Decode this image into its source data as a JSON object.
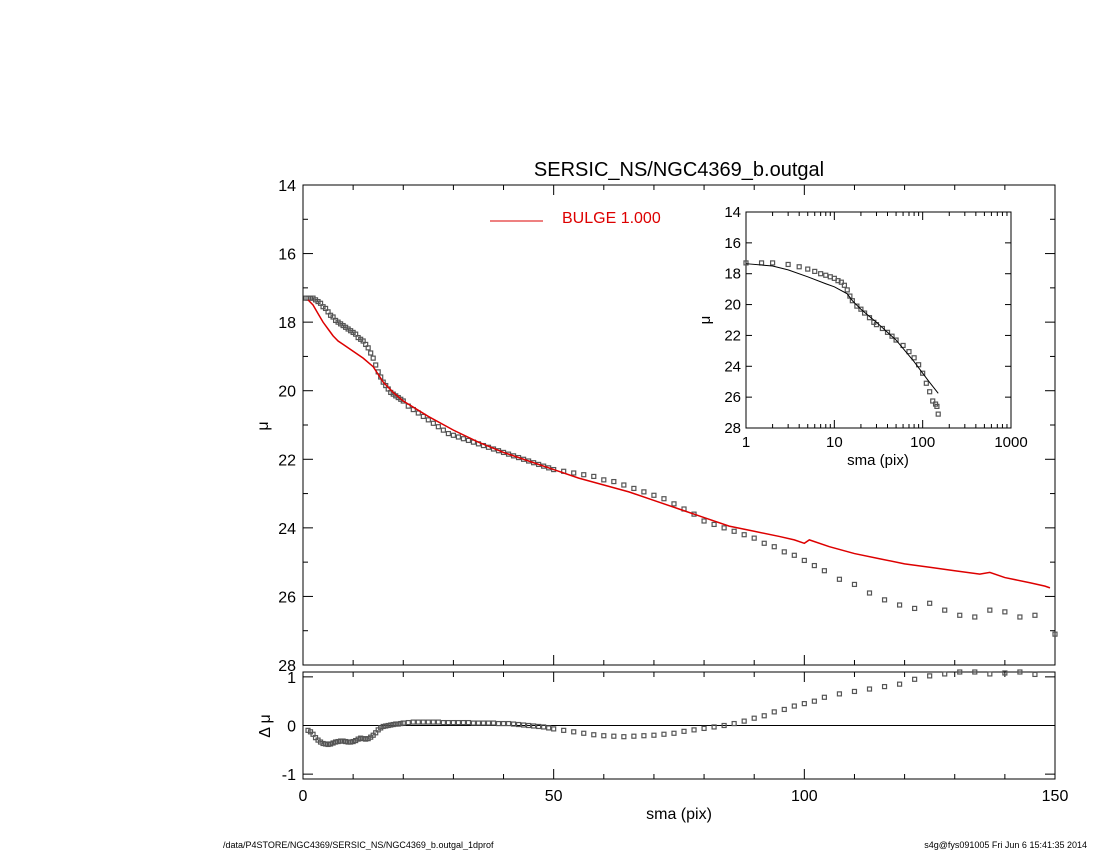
{
  "footer": {
    "path": "/data/P4STORE/NGC4369/SERSIC_NS/NGC4369_b.outgal_1dprof",
    "stamp": "s4g@fys091005  Fri Jun  6 15:41:35 2014"
  },
  "colors": {
    "model": "#dd0000",
    "data": "#555555",
    "axes": "#000000"
  },
  "chart_data": [
    {
      "id": "main",
      "type": "scatter",
      "title": "SERSIC_NS/NGC4369_b.outgal",
      "ylabel": "μ",
      "xlabel": "",
      "xlim": [
        0,
        150
      ],
      "ylim": [
        28,
        14
      ],
      "y_inverted": true,
      "yticks": [
        14,
        16,
        18,
        20,
        22,
        24,
        26,
        28
      ],
      "legend": {
        "text": "BULGE  1.000",
        "placement": "top-center"
      },
      "series": [
        {
          "name": "BULGE  1.000",
          "kind": "line",
          "x": [
            1,
            2,
            3,
            4,
            5,
            6,
            7,
            8,
            10,
            12,
            14,
            16,
            18,
            20,
            25,
            30,
            35,
            40,
            45,
            50,
            55,
            60,
            65,
            70,
            75,
            80,
            85,
            90,
            95,
            98,
            100,
            101,
            105,
            110,
            115,
            120,
            125,
            130,
            135,
            137,
            140,
            145,
            148,
            149
          ],
          "y": [
            17.35,
            17.5,
            17.75,
            18.0,
            18.2,
            18.4,
            18.55,
            18.65,
            18.85,
            19.05,
            19.3,
            19.75,
            20.05,
            20.3,
            20.75,
            21.15,
            21.5,
            21.8,
            22.05,
            22.3,
            22.55,
            22.75,
            22.95,
            23.2,
            23.45,
            23.7,
            23.95,
            24.1,
            24.25,
            24.35,
            24.45,
            24.35,
            24.55,
            24.75,
            24.9,
            25.05,
            25.15,
            25.25,
            25.35,
            25.3,
            25.45,
            25.6,
            25.7,
            25.75
          ]
        },
        {
          "kind": "markers",
          "x": [
            0.6,
            1.0,
            1.5,
            2.0,
            2.5,
            3.0,
            3.5,
            4.0,
            4.5,
            5.0,
            5.5,
            6.0,
            6.5,
            7.0,
            7.5,
            8.0,
            8.5,
            9.0,
            9.5,
            10.0,
            10.5,
            11.0,
            11.5,
            12.0,
            12.5,
            13.0,
            13.5,
            14.0,
            14.5,
            15.0,
            15.5,
            16.0,
            16.5,
            17.0,
            17.5,
            18.0,
            18.5,
            19.0,
            19.5,
            20.0,
            21,
            22,
            23,
            24,
            25,
            26,
            27,
            28,
            29,
            30,
            31,
            32,
            33,
            34,
            35,
            36,
            37,
            38,
            39,
            40,
            41,
            42,
            43,
            44,
            45,
            46,
            47,
            48,
            49,
            50,
            52,
            54,
            56,
            58,
            60,
            62,
            64,
            66,
            68,
            70,
            72,
            74,
            76,
            78,
            80,
            82,
            84,
            86,
            88,
            90,
            92,
            94,
            96,
            98,
            100,
            102,
            104,
            107,
            110,
            113,
            116,
            119,
            122,
            125,
            128,
            131,
            134,
            137,
            140,
            143,
            146,
            150
          ],
          "y": [
            17.3,
            17.3,
            17.3,
            17.3,
            17.35,
            17.4,
            17.45,
            17.55,
            17.6,
            17.7,
            17.8,
            17.85,
            17.95,
            18.0,
            18.05,
            18.1,
            18.15,
            18.2,
            18.25,
            18.3,
            18.35,
            18.45,
            18.5,
            18.55,
            18.65,
            18.75,
            18.9,
            19.05,
            19.25,
            19.45,
            19.6,
            19.75,
            19.85,
            19.95,
            20.05,
            20.1,
            20.15,
            20.2,
            20.25,
            20.3,
            20.45,
            20.55,
            20.65,
            20.75,
            20.85,
            20.95,
            21.05,
            21.15,
            21.25,
            21.3,
            21.35,
            21.4,
            21.45,
            21.5,
            21.55,
            21.6,
            21.65,
            21.7,
            21.75,
            21.8,
            21.85,
            21.9,
            21.95,
            22.0,
            22.05,
            22.1,
            22.15,
            22.2,
            22.25,
            22.3,
            22.35,
            22.4,
            22.45,
            22.5,
            22.6,
            22.65,
            22.75,
            22.85,
            22.95,
            23.05,
            23.15,
            23.3,
            23.45,
            23.6,
            23.8,
            23.9,
            24.0,
            24.1,
            24.2,
            24.3,
            24.45,
            24.55,
            24.7,
            24.8,
            24.95,
            25.1,
            25.25,
            25.5,
            25.65,
            25.9,
            26.1,
            26.25,
            26.35,
            26.2,
            26.4,
            26.55,
            26.6,
            26.4,
            26.45,
            26.6,
            26.55,
            27.1
          ]
        }
      ]
    },
    {
      "id": "inset",
      "type": "scatter",
      "xlabel": "sma (pix)",
      "ylabel": "μ",
      "xscale": "log",
      "xlim": [
        1,
        1000
      ],
      "ylim": [
        28,
        14
      ],
      "y_inverted": true,
      "xticks": [
        1,
        10,
        100,
        1000
      ],
      "yticks": [
        14,
        16,
        18,
        20,
        22,
        24,
        26,
        28
      ],
      "series": [
        {
          "kind": "line",
          "x": [
            1,
            2,
            3,
            5,
            8,
            10,
            14,
            16,
            20,
            30,
            50,
            80,
            100,
            120,
            150
          ],
          "y": [
            17.35,
            17.5,
            17.75,
            18.2,
            18.65,
            18.85,
            19.3,
            19.75,
            20.3,
            21.15,
            22.3,
            23.7,
            24.45,
            25.05,
            25.75
          ]
        },
        {
          "kind": "markers",
          "x": [
            1,
            1.5,
            2,
            3,
            4,
            5,
            6,
            7,
            8,
            9,
            10,
            11,
            12,
            13,
            14,
            15,
            16,
            18,
            20,
            22,
            25,
            28,
            30,
            35,
            40,
            45,
            50,
            60,
            70,
            80,
            90,
            100,
            110,
            120,
            130,
            140,
            145,
            150
          ],
          "y": [
            17.3,
            17.3,
            17.3,
            17.4,
            17.55,
            17.7,
            17.85,
            18.0,
            18.1,
            18.2,
            18.3,
            18.45,
            18.55,
            18.75,
            19.05,
            19.45,
            19.75,
            20.1,
            20.3,
            20.55,
            20.85,
            21.15,
            21.3,
            21.55,
            21.8,
            22.05,
            22.3,
            22.65,
            23.05,
            23.45,
            23.9,
            24.45,
            25.1,
            25.65,
            26.25,
            26.45,
            26.6,
            27.1
          ]
        }
      ]
    },
    {
      "id": "residual",
      "type": "scatter",
      "ylabel": "Δ μ",
      "xlabel": "sma (pix)",
      "xlim": [
        0,
        150
      ],
      "ylim": [
        -1.1,
        1.1
      ],
      "xticks": [
        0,
        50,
        100,
        150
      ],
      "yticks": [
        -1,
        0,
        1
      ],
      "zero_line": true,
      "series": [
        {
          "kind": "markers",
          "x": [
            1,
            1.5,
            2,
            2.5,
            3,
            3.5,
            4,
            4.5,
            5,
            5.5,
            6,
            6.5,
            7,
            7.5,
            8,
            8.5,
            9,
            9.5,
            10,
            10.5,
            11,
            11.5,
            12,
            12.5,
            13,
            13.5,
            14,
            14.5,
            15,
            15.5,
            16,
            16.5,
            17,
            17.5,
            18,
            18.5,
            19,
            19.5,
            20,
            21,
            22,
            23,
            24,
            25,
            26,
            27,
            28,
            29,
            30,
            31,
            32,
            33,
            34,
            35,
            36,
            37,
            38,
            39,
            40,
            41,
            42,
            43,
            44,
            45,
            46,
            47,
            48,
            49,
            50,
            52,
            54,
            56,
            58,
            60,
            62,
            64,
            66,
            68,
            70,
            72,
            74,
            76,
            78,
            80,
            82,
            84,
            86,
            88,
            90,
            92,
            94,
            96,
            98,
            100,
            102,
            104,
            107,
            110,
            113,
            116,
            119,
            122,
            125,
            128,
            131,
            134,
            137,
            140,
            143,
            146
          ],
          "y": [
            -0.1,
            -0.13,
            -0.18,
            -0.25,
            -0.3,
            -0.34,
            -0.37,
            -0.38,
            -0.39,
            -0.38,
            -0.36,
            -0.34,
            -0.33,
            -0.32,
            -0.32,
            -0.33,
            -0.34,
            -0.34,
            -0.33,
            -0.31,
            -0.28,
            -0.26,
            -0.27,
            -0.28,
            -0.27,
            -0.24,
            -0.2,
            -0.15,
            -0.09,
            -0.05,
            -0.02,
            -0.01,
            0.0,
            0.01,
            0.02,
            0.03,
            0.03,
            0.04,
            0.05,
            0.06,
            0.07,
            0.07,
            0.07,
            0.07,
            0.07,
            0.07,
            0.06,
            0.06,
            0.06,
            0.06,
            0.06,
            0.06,
            0.05,
            0.05,
            0.05,
            0.05,
            0.05,
            0.04,
            0.04,
            0.04,
            0.03,
            0.02,
            0.01,
            0.0,
            -0.01,
            -0.02,
            -0.03,
            -0.05,
            -0.07,
            -0.1,
            -0.13,
            -0.16,
            -0.19,
            -0.21,
            -0.22,
            -0.23,
            -0.22,
            -0.21,
            -0.2,
            -0.18,
            -0.16,
            -0.12,
            -0.09,
            -0.06,
            -0.03,
            0.0,
            0.04,
            0.09,
            0.15,
            0.2,
            0.28,
            0.33,
            0.4,
            0.45,
            0.5,
            0.58,
            0.65,
            0.7,
            0.75,
            0.8,
            0.85,
            0.95,
            1.02,
            1.06,
            1.1,
            1.12,
            1.06,
            1.08,
            1.1,
            1.05
          ]
        }
      ]
    }
  ]
}
